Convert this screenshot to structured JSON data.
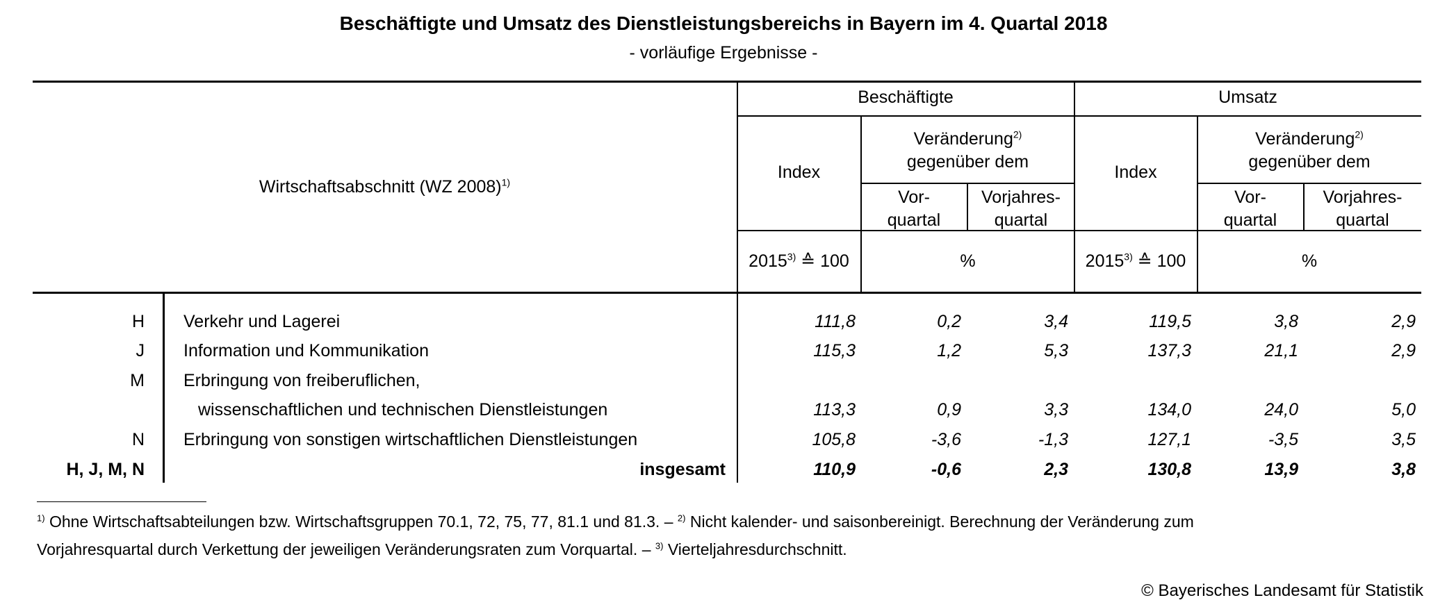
{
  "title": "Beschäftigte und Umsatz des Dienstleistungsbereichs in Bayern im 4. Quartal 2018",
  "subtitle": "- vorläufige Ergebnisse -",
  "header": {
    "stub_label": "Wirtschaftsabschnitt (WZ 2008)",
    "stub_sup": "1)",
    "group_employees": "Beschäftigte",
    "group_revenue": "Umsatz",
    "index": "Index",
    "change_line1": "Veränderung",
    "change_sup": "2)",
    "change_line2": "gegenüber dem",
    "prev_quarter_1": "Vor-",
    "prev_quarter_2": "quartal",
    "prev_year_1": "Vorjahres-",
    "prev_year_2": "quartal",
    "base_year": "2015",
    "base_sup": "3)",
    "base_rest": " ≙ 100",
    "percent": "%"
  },
  "rows": [
    {
      "code": "H",
      "label": "Verkehr und Lagerei",
      "label2": "",
      "values": [
        "111,8",
        "0,2",
        "3,4",
        "119,5",
        "3,8",
        "2,9"
      ]
    },
    {
      "code": "J",
      "label": "Information und Kommunikation",
      "label2": "",
      "values": [
        "115,3",
        "1,2",
        "5,3",
        "137,3",
        "21,1",
        "2,9"
      ]
    },
    {
      "code": "M",
      "label": "Erbringung von freiberuflichen,",
      "label2": "wissenschaftlichen und technischen Dienstleistungen",
      "values": [
        "113,3",
        "0,9",
        "3,3",
        "134,0",
        "24,0",
        "5,0"
      ]
    },
    {
      "code": "N",
      "label": "Erbringung von sonstigen wirtschaftlichen Dienstleistungen",
      "label2": "",
      "values": [
        "105,8",
        "-3,6",
        "-1,3",
        "127,1",
        "-3,5",
        "3,5"
      ]
    }
  ],
  "total": {
    "code": "H, J, M, N",
    "label": "insgesamt",
    "values": [
      "110,9",
      "-0,6",
      "2,3",
      "130,8",
      "13,9",
      "3,8"
    ]
  },
  "footnotes": {
    "sup1": "1)",
    "text1": " Ohne Wirtschaftsabteilungen bzw. Wirtschaftsgruppen  70.1, 72, 75, 77, 81.1 und 81.3. – ",
    "sup2": "2)",
    "text2": " Nicht kalender- und saisonbereinigt. Berechnung der Veränderung zum",
    "line2": "Vorjahresquartal durch Verkettung der jeweiligen Veränderungsraten zum Vorquartal. – ",
    "sup3": "3)",
    "text3": " Vierteljahresdurchschnitt."
  },
  "copyright": "© Bayerisches Landesamt für Statistik"
}
